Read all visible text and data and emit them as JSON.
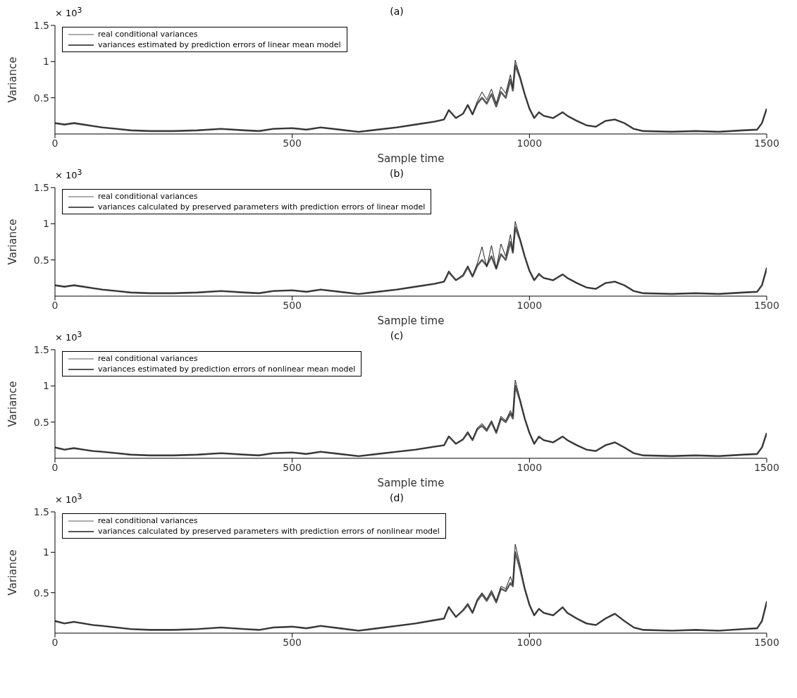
{
  "chart_data": [
    {
      "type": "line",
      "title": "(a)",
      "xlabel": "Sample time",
      "ylabel": "Variance",
      "annotations": [
        "× 10$^{3}$"
      ],
      "xlim": [
        0,
        1500
      ],
      "xticks": [
        0,
        500,
        1000,
        1500
      ],
      "ylim": [
        0,
        1.5
      ],
      "yticks": [
        0.5,
        1,
        1.5
      ],
      "legend": "top left",
      "grid": false,
      "marker": "none",
      "line_style": "solid",
      "x": [
        0,
        20,
        40,
        60,
        80,
        100,
        130,
        160,
        200,
        250,
        300,
        350,
        400,
        430,
        460,
        500,
        530,
        560,
        600,
        640,
        680,
        720,
        760,
        800,
        820,
        830,
        845,
        860,
        870,
        880,
        890,
        900,
        910,
        920,
        930,
        940,
        950,
        960,
        965,
        970,
        980,
        990,
        1000,
        1010,
        1020,
        1030,
        1050,
        1070,
        1080,
        1100,
        1120,
        1140,
        1160,
        1180,
        1200,
        1220,
        1240,
        1300,
        1350,
        1400,
        1450,
        1480,
        1490,
        1500
      ],
      "series": [
        {
          "name": "real conditional variances",
          "color": "#5a5a5a",
          "values": [
            0.15,
            0.13,
            0.15,
            0.13,
            0.11,
            0.09,
            0.07,
            0.05,
            0.04,
            0.04,
            0.05,
            0.07,
            0.05,
            0.04,
            0.07,
            0.08,
            0.06,
            0.09,
            0.06,
            0.03,
            0.06,
            0.09,
            0.13,
            0.17,
            0.2,
            0.33,
            0.22,
            0.28,
            0.4,
            0.27,
            0.42,
            0.5,
            0.42,
            0.55,
            0.38,
            0.58,
            0.5,
            0.75,
            0.6,
            0.95,
            0.78,
            0.55,
            0.35,
            0.22,
            0.3,
            0.25,
            0.22,
            0.3,
            0.25,
            0.18,
            0.12,
            0.1,
            0.18,
            0.2,
            0.15,
            0.07,
            0.04,
            0.03,
            0.04,
            0.03,
            0.05,
            0.06,
            0.15,
            0.35
          ]
        },
        {
          "name": "variances estimated by prediction errors of linear mean model",
          "color": "#1e1e1e",
          "values": [
            0.15,
            0.13,
            0.15,
            0.13,
            0.11,
            0.09,
            0.07,
            0.05,
            0.04,
            0.04,
            0.05,
            0.07,
            0.05,
            0.04,
            0.07,
            0.08,
            0.06,
            0.09,
            0.06,
            0.03,
            0.06,
            0.09,
            0.13,
            0.17,
            0.2,
            0.33,
            0.22,
            0.28,
            0.4,
            0.27,
            0.45,
            0.58,
            0.47,
            0.62,
            0.42,
            0.65,
            0.56,
            0.82,
            0.63,
            1.02,
            0.8,
            0.55,
            0.35,
            0.22,
            0.3,
            0.25,
            0.22,
            0.3,
            0.25,
            0.18,
            0.12,
            0.1,
            0.18,
            0.2,
            0.15,
            0.07,
            0.04,
            0.03,
            0.04,
            0.03,
            0.05,
            0.06,
            0.15,
            0.35
          ]
        }
      ]
    },
    {
      "type": "line",
      "title": "(b)",
      "xlabel": "Sample time",
      "ylabel": "Variance",
      "annotations": [
        "× 10$^{3}$"
      ],
      "xlim": [
        0,
        1500
      ],
      "xticks": [
        0,
        500,
        1000,
        1500
      ],
      "ylim": [
        0,
        1.5
      ],
      "yticks": [
        0.5,
        1,
        1.5
      ],
      "legend": "top left",
      "grid": false,
      "marker": "none",
      "line_style": "solid",
      "x": [
        0,
        20,
        40,
        60,
        80,
        100,
        130,
        160,
        200,
        250,
        300,
        350,
        400,
        430,
        460,
        500,
        530,
        560,
        600,
        640,
        680,
        720,
        760,
        800,
        820,
        830,
        845,
        860,
        870,
        880,
        890,
        900,
        910,
        920,
        930,
        940,
        950,
        960,
        965,
        970,
        980,
        990,
        1000,
        1010,
        1020,
        1030,
        1050,
        1070,
        1080,
        1100,
        1120,
        1140,
        1160,
        1180,
        1200,
        1220,
        1240,
        1300,
        1350,
        1400,
        1450,
        1480,
        1490,
        1500
      ],
      "series": [
        {
          "name": "real conditional variances",
          "color": "#5a5a5a",
          "values": [
            0.15,
            0.13,
            0.15,
            0.13,
            0.11,
            0.09,
            0.07,
            0.05,
            0.04,
            0.04,
            0.05,
            0.07,
            0.05,
            0.04,
            0.07,
            0.08,
            0.06,
            0.09,
            0.06,
            0.03,
            0.06,
            0.09,
            0.13,
            0.17,
            0.2,
            0.33,
            0.22,
            0.28,
            0.4,
            0.27,
            0.42,
            0.5,
            0.42,
            0.55,
            0.38,
            0.58,
            0.5,
            0.75,
            0.6,
            0.95,
            0.78,
            0.55,
            0.35,
            0.22,
            0.3,
            0.25,
            0.22,
            0.3,
            0.25,
            0.18,
            0.12,
            0.1,
            0.18,
            0.2,
            0.15,
            0.07,
            0.04,
            0.03,
            0.04,
            0.03,
            0.05,
            0.06,
            0.15,
            0.38
          ]
        },
        {
          "name": "variances calculated by preserved parameters with prediction errors of linear model",
          "color": "#1e1e1e",
          "values": [
            0.15,
            0.13,
            0.15,
            0.13,
            0.11,
            0.09,
            0.07,
            0.05,
            0.04,
            0.04,
            0.05,
            0.07,
            0.05,
            0.04,
            0.07,
            0.08,
            0.06,
            0.09,
            0.06,
            0.03,
            0.06,
            0.09,
            0.13,
            0.17,
            0.2,
            0.35,
            0.22,
            0.3,
            0.42,
            0.28,
            0.45,
            0.68,
            0.4,
            0.7,
            0.38,
            0.72,
            0.55,
            0.85,
            0.62,
            1.03,
            0.8,
            0.55,
            0.35,
            0.22,
            0.32,
            0.25,
            0.22,
            0.3,
            0.25,
            0.18,
            0.12,
            0.1,
            0.18,
            0.2,
            0.15,
            0.07,
            0.04,
            0.03,
            0.04,
            0.03,
            0.05,
            0.06,
            0.15,
            0.4
          ]
        }
      ]
    },
    {
      "type": "line",
      "title": "(c)",
      "xlabel": "Sample time",
      "ylabel": "Variance",
      "annotations": [
        "× 10$^{3}$"
      ],
      "xlim": [
        0,
        1500
      ],
      "xticks": [
        0,
        500,
        1000,
        1500
      ],
      "ylim": [
        0,
        1.5
      ],
      "yticks": [
        0.5,
        1,
        1.5
      ],
      "legend": "top left",
      "grid": false,
      "marker": "none",
      "line_style": "solid",
      "x": [
        0,
        20,
        40,
        60,
        80,
        100,
        130,
        160,
        200,
        250,
        300,
        350,
        400,
        430,
        460,
        500,
        530,
        560,
        600,
        640,
        680,
        720,
        760,
        800,
        820,
        830,
        845,
        860,
        870,
        880,
        890,
        900,
        910,
        920,
        930,
        940,
        950,
        960,
        965,
        970,
        980,
        990,
        1000,
        1010,
        1020,
        1030,
        1050,
        1070,
        1080,
        1100,
        1120,
        1140,
        1160,
        1180,
        1200,
        1220,
        1240,
        1300,
        1350,
        1400,
        1450,
        1480,
        1490,
        1500
      ],
      "series": [
        {
          "name": "real conditional variances",
          "color": "#5a5a5a",
          "values": [
            0.15,
            0.12,
            0.14,
            0.12,
            0.1,
            0.09,
            0.07,
            0.05,
            0.04,
            0.04,
            0.05,
            0.07,
            0.05,
            0.04,
            0.07,
            0.08,
            0.06,
            0.09,
            0.06,
            0.03,
            0.06,
            0.09,
            0.12,
            0.16,
            0.18,
            0.3,
            0.2,
            0.26,
            0.35,
            0.25,
            0.4,
            0.45,
            0.38,
            0.5,
            0.35,
            0.55,
            0.5,
            0.62,
            0.55,
            1.0,
            0.8,
            0.55,
            0.35,
            0.2,
            0.3,
            0.25,
            0.22,
            0.3,
            0.25,
            0.18,
            0.12,
            0.1,
            0.18,
            0.22,
            0.15,
            0.07,
            0.04,
            0.03,
            0.04,
            0.03,
            0.05,
            0.06,
            0.15,
            0.35
          ]
        },
        {
          "name": "variances estimated by prediction errors of nonlinear mean model",
          "color": "#1e1e1e",
          "values": [
            0.15,
            0.12,
            0.14,
            0.12,
            0.1,
            0.09,
            0.07,
            0.05,
            0.04,
            0.04,
            0.05,
            0.07,
            0.05,
            0.04,
            0.07,
            0.08,
            0.06,
            0.09,
            0.06,
            0.03,
            0.06,
            0.09,
            0.12,
            0.16,
            0.18,
            0.31,
            0.2,
            0.27,
            0.37,
            0.26,
            0.42,
            0.48,
            0.4,
            0.52,
            0.37,
            0.58,
            0.52,
            0.66,
            0.58,
            1.08,
            0.82,
            0.55,
            0.35,
            0.2,
            0.3,
            0.25,
            0.22,
            0.3,
            0.25,
            0.18,
            0.12,
            0.1,
            0.18,
            0.22,
            0.15,
            0.07,
            0.04,
            0.03,
            0.04,
            0.03,
            0.05,
            0.06,
            0.15,
            0.35
          ]
        }
      ]
    },
    {
      "type": "line",
      "title": "(d)",
      "ylabel": "Variance",
      "annotations": [
        "× 10$^{3}$"
      ],
      "xlim": [
        0,
        1500
      ],
      "xticks": [
        0,
        500,
        1000,
        1500
      ],
      "ylim": [
        0,
        1.5
      ],
      "yticks": [
        0.5,
        1,
        1.5
      ],
      "legend": "top left",
      "grid": false,
      "marker": "none",
      "line_style": "solid",
      "x": [
        0,
        20,
        40,
        60,
        80,
        100,
        130,
        160,
        200,
        250,
        300,
        350,
        400,
        430,
        460,
        500,
        530,
        560,
        600,
        640,
        680,
        720,
        760,
        800,
        820,
        830,
        845,
        860,
        870,
        880,
        890,
        900,
        910,
        920,
        930,
        940,
        950,
        960,
        965,
        970,
        980,
        990,
        1000,
        1010,
        1020,
        1030,
        1050,
        1070,
        1080,
        1100,
        1120,
        1140,
        1160,
        1180,
        1200,
        1220,
        1240,
        1300,
        1350,
        1400,
        1450,
        1480,
        1490,
        1500
      ],
      "series": [
        {
          "name": "real conditional variances",
          "color": "#5a5a5a",
          "values": [
            0.15,
            0.12,
            0.14,
            0.12,
            0.1,
            0.09,
            0.07,
            0.05,
            0.04,
            0.04,
            0.05,
            0.07,
            0.05,
            0.04,
            0.07,
            0.08,
            0.06,
            0.09,
            0.06,
            0.03,
            0.06,
            0.09,
            0.12,
            0.16,
            0.18,
            0.32,
            0.2,
            0.28,
            0.35,
            0.25,
            0.4,
            0.48,
            0.4,
            0.5,
            0.38,
            0.55,
            0.52,
            0.62,
            0.58,
            1.0,
            0.8,
            0.55,
            0.35,
            0.22,
            0.3,
            0.25,
            0.22,
            0.32,
            0.25,
            0.18,
            0.12,
            0.1,
            0.18,
            0.24,
            0.15,
            0.07,
            0.04,
            0.03,
            0.04,
            0.03,
            0.05,
            0.06,
            0.15,
            0.38
          ]
        },
        {
          "name": "variances calculated by preserved parameters with prediction errors of nonlinear model",
          "color": "#1e1e1e",
          "values": [
            0.15,
            0.12,
            0.14,
            0.12,
            0.1,
            0.09,
            0.07,
            0.05,
            0.04,
            0.04,
            0.05,
            0.07,
            0.05,
            0.04,
            0.07,
            0.08,
            0.06,
            0.09,
            0.06,
            0.03,
            0.06,
            0.09,
            0.12,
            0.16,
            0.18,
            0.33,
            0.2,
            0.29,
            0.37,
            0.26,
            0.42,
            0.5,
            0.42,
            0.53,
            0.4,
            0.58,
            0.55,
            0.7,
            0.6,
            1.1,
            0.85,
            0.55,
            0.35,
            0.22,
            0.3,
            0.25,
            0.22,
            0.32,
            0.25,
            0.18,
            0.12,
            0.1,
            0.18,
            0.24,
            0.15,
            0.07,
            0.04,
            0.03,
            0.04,
            0.03,
            0.05,
            0.06,
            0.15,
            0.4
          ]
        }
      ]
    }
  ]
}
